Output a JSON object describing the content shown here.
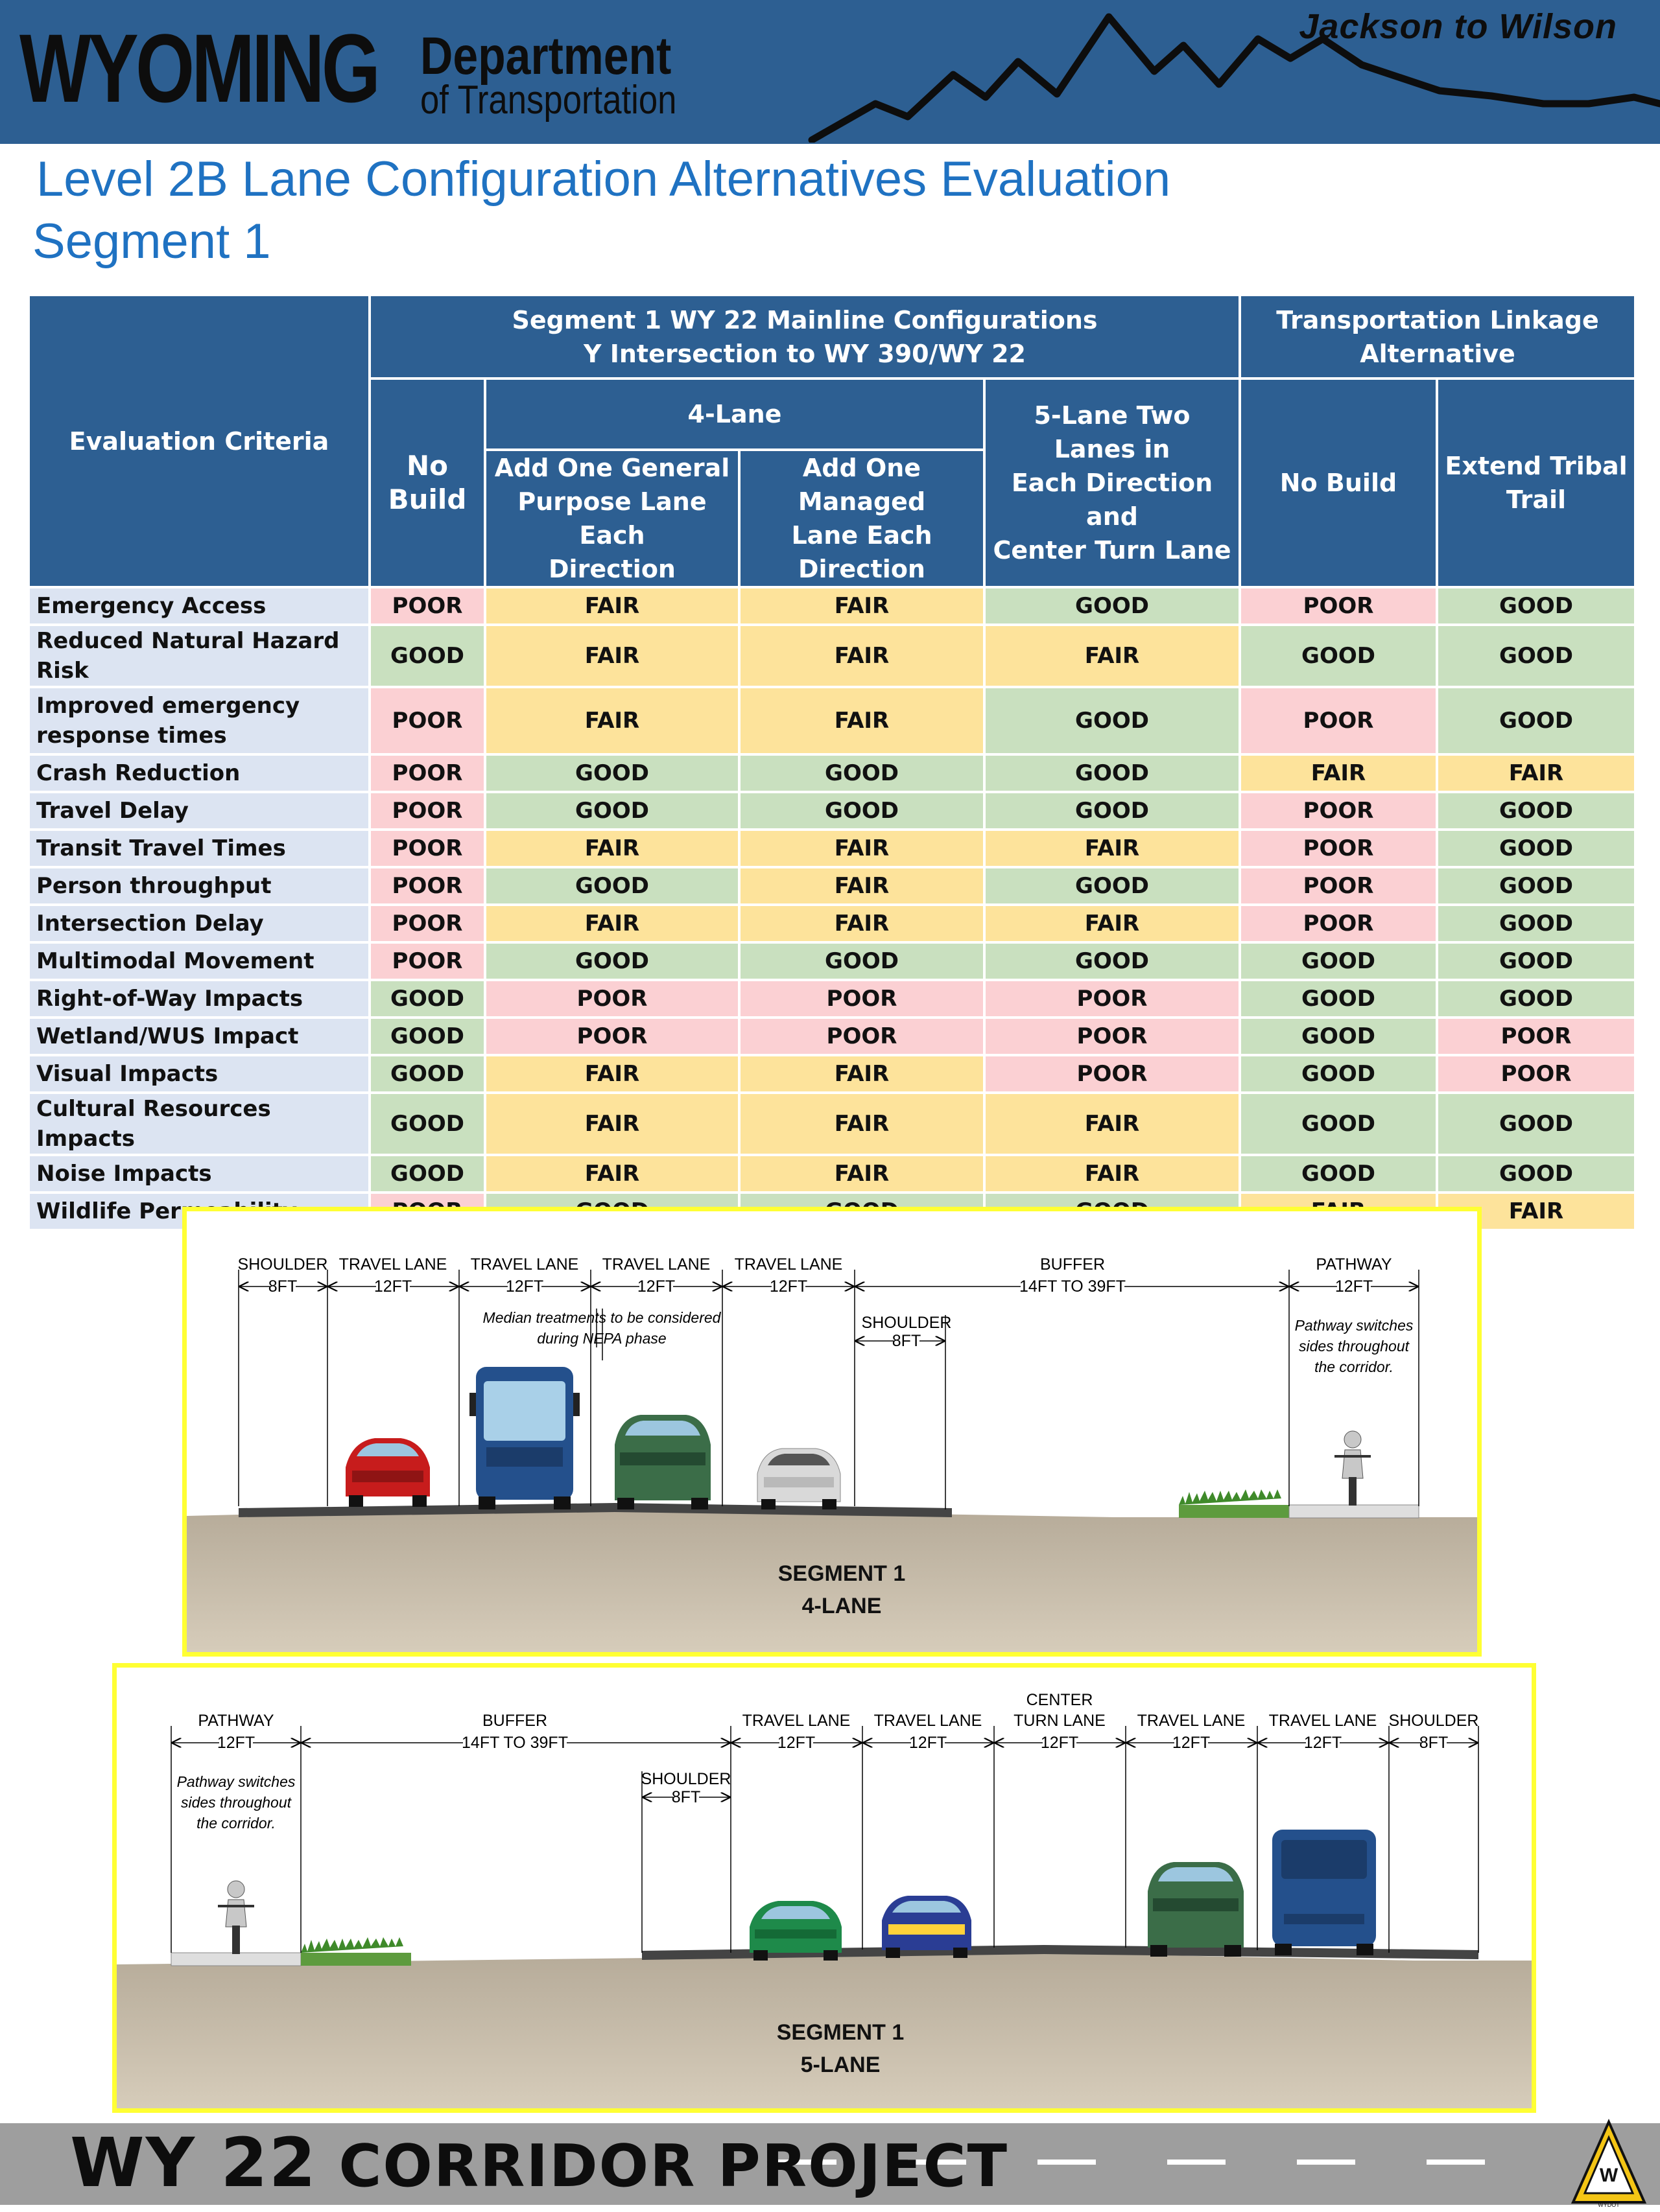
{
  "header": {
    "logo_wyoming": "WYOMING",
    "logo_department": "Department",
    "logo_transportation": "of Transportation",
    "subtitle": "Jackson to Wilson",
    "bg_color": "#2d5f92"
  },
  "title_line1": "Level 2B Lane Configuration Alternatives Evaluation",
  "title_line2": "Segment 1",
  "table": {
    "criteria_header": "Evaluation Criteria",
    "group1_line1": "Segment 1 WY 22 Mainline Configurations",
    "group1_line2": "Y Intersection to WY 390/WY 22",
    "group2_line1": "Transportation Linkage",
    "group2_line2": "Alternative",
    "no_build_line1": "No",
    "no_build_line2": "Build",
    "four_lane": "4-Lane",
    "add_gp_line1": "Add One General",
    "add_gp_line2": "Purpose Lane Each",
    "add_gp_line3": "Direction",
    "add_managed_line1": "Add One Managed",
    "add_managed_line2": "Lane Each Direction",
    "five_lane_line1": "5-Lane Two Lanes in",
    "five_lane_line2": "Each Direction and",
    "five_lane_line3": "Center Turn Lane",
    "tl_no_build": "No Build",
    "extend_line1": "Extend Tribal",
    "extend_line2": "Trail",
    "rows": [
      {
        "criterion": "Emergency Access",
        "ratings": [
          "POOR",
          "FAIR",
          "FAIR",
          "GOOD",
          "POOR",
          "GOOD"
        ]
      },
      {
        "criterion": "Reduced Natural Hazard Risk",
        "ratings": [
          "GOOD",
          "FAIR",
          "FAIR",
          "FAIR",
          "GOOD",
          "GOOD"
        ]
      },
      {
        "criterion": "Improved emergency response times",
        "ratings": [
          "POOR",
          "FAIR",
          "FAIR",
          "GOOD",
          "POOR",
          "GOOD"
        ]
      },
      {
        "criterion": "Crash Reduction",
        "ratings": [
          "POOR",
          "GOOD",
          "GOOD",
          "GOOD",
          "FAIR",
          "FAIR"
        ]
      },
      {
        "criterion": "Travel Delay",
        "ratings": [
          "POOR",
          "GOOD",
          "GOOD",
          "GOOD",
          "POOR",
          "GOOD"
        ]
      },
      {
        "criterion": "Transit Travel Times",
        "ratings": [
          "POOR",
          "FAIR",
          "FAIR",
          "FAIR",
          "POOR",
          "GOOD"
        ]
      },
      {
        "criterion": "Person throughput",
        "ratings": [
          "POOR",
          "GOOD",
          "FAIR",
          "GOOD",
          "POOR",
          "GOOD"
        ]
      },
      {
        "criterion": "Intersection Delay",
        "ratings": [
          "POOR",
          "FAIR",
          "FAIR",
          "FAIR",
          "POOR",
          "GOOD"
        ]
      },
      {
        "criterion": "Multimodal Movement",
        "ratings": [
          "POOR",
          "GOOD",
          "GOOD",
          "GOOD",
          "GOOD",
          "GOOD"
        ]
      },
      {
        "criterion": "Right-of-Way Impacts",
        "ratings": [
          "GOOD",
          "POOR",
          "POOR",
          "POOR",
          "GOOD",
          "GOOD"
        ]
      },
      {
        "criterion": "Wetland/WUS Impact",
        "ratings": [
          "GOOD",
          "POOR",
          "POOR",
          "POOR",
          "GOOD",
          "POOR"
        ]
      },
      {
        "criterion": "Visual Impacts",
        "ratings": [
          "GOOD",
          "FAIR",
          "FAIR",
          "POOR",
          "GOOD",
          "POOR"
        ]
      },
      {
        "criterion": "Cultural Resources Impacts",
        "ratings": [
          "GOOD",
          "FAIR",
          "FAIR",
          "FAIR",
          "GOOD",
          "GOOD"
        ]
      },
      {
        "criterion": "Noise Impacts",
        "ratings": [
          "GOOD",
          "FAIR",
          "FAIR",
          "FAIR",
          "GOOD",
          "GOOD"
        ]
      },
      {
        "criterion": "Wildlife Permeability",
        "ratings": [
          "POOR",
          "GOOD",
          "GOOD",
          "GOOD",
          "FAIR",
          "FAIR"
        ]
      }
    ],
    "colors": {
      "POOR": "#fbd0d3",
      "FAIR": "#fde39b",
      "GOOD": "#c9e0bf",
      "criteria_bg": "#dce4f2",
      "header_bg": "#2d5f92"
    }
  },
  "diagram1": {
    "labels": {
      "shoulder": "SHOULDER",
      "shoulder_w": "8FT",
      "travel_lane": "TRAVEL LANE",
      "travel_w": "12FT",
      "buffer": "BUFFER",
      "buffer_w": "14FT TO 39FT",
      "pathway": "PATHWAY",
      "pathway_w": "12FT",
      "inner_shoulder": "SHOULDER",
      "inner_shoulder_w": "8FT",
      "median_note1": "Median treatments to be considered",
      "median_note2": "during NEPA phase",
      "pathway_note1": "Pathway switches",
      "pathway_note2": "sides throughout",
      "pathway_note3": "the corridor."
    },
    "caption1": "SEGMENT 1",
    "caption2": "4-LANE",
    "border_color": "#ffff33"
  },
  "diagram2": {
    "labels": {
      "pathway": "PATHWAY",
      "pathway_w": "12FT",
      "buffer": "BUFFER",
      "buffer_w": "14FT TO 39FT",
      "shoulder_left": "SHOULDER",
      "shoulder_left_w": "8FT",
      "travel_lane": "TRAVEL LANE",
      "travel_w": "12FT",
      "center1": "CENTER",
      "center2": "TURN LANE",
      "center_w": "12FT",
      "shoulder_right": "SHOULDER",
      "shoulder_right_w": "8FT",
      "pathway_note1": "Pathway switches",
      "pathway_note2": "sides throughout",
      "pathway_note3": "the corridor."
    },
    "caption1": "SEGMENT 1",
    "caption2": "5-LANE",
    "border_color": "#ffff33"
  },
  "footer": {
    "title_prefix": "WY 22",
    "title_rest": "CORRIDOR PROJECT",
    "logo_text": "WYDOT",
    "bg_color": "#9e9e9e"
  }
}
